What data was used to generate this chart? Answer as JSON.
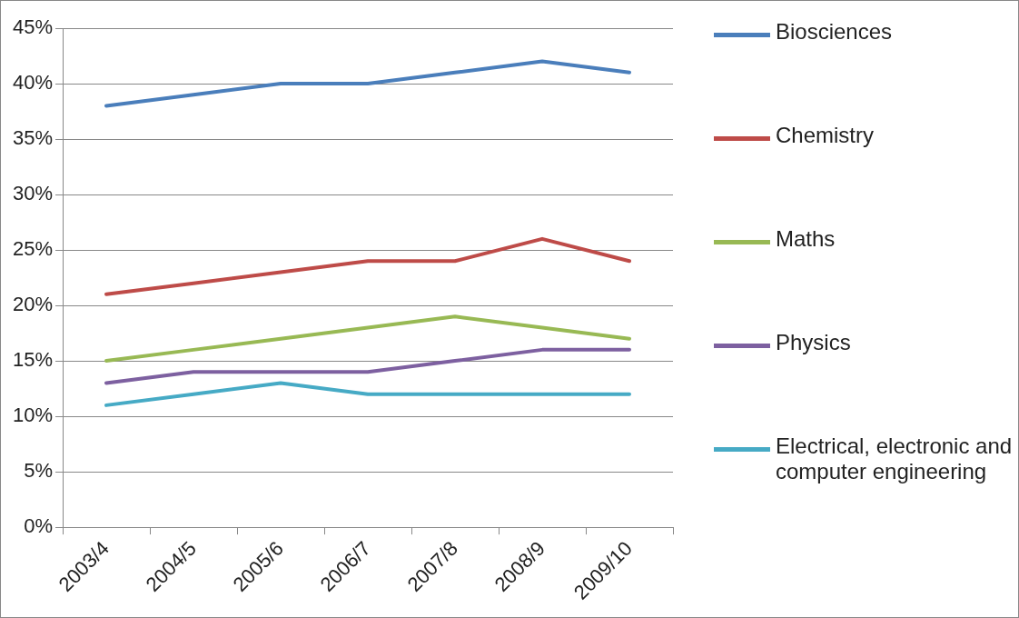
{
  "chart_data": {
    "type": "line",
    "categories": [
      "2003/4",
      "2004/5",
      "2005/6",
      "2006/7",
      "2007/8",
      "2008/9",
      "2009/10"
    ],
    "series": [
      {
        "name": "Biosciences",
        "color": "#4a7ebb",
        "values": [
          38,
          39,
          40,
          40,
          41,
          42,
          41
        ]
      },
      {
        "name": "Chemistry",
        "color": "#be4b48",
        "values": [
          21,
          22,
          23,
          24,
          24,
          26,
          24
        ]
      },
      {
        "name": "Maths",
        "color": "#98b954",
        "values": [
          15,
          16,
          17,
          18,
          19,
          18,
          17
        ]
      },
      {
        "name": "Physics",
        "color": "#7d60a0",
        "values": [
          13,
          14,
          14,
          14,
          15,
          16,
          16
        ]
      },
      {
        "name": "Electrical, electronic and computer engineering",
        "color": "#46aac5",
        "values": [
          11,
          12,
          13,
          12,
          12,
          12,
          12
        ]
      }
    ],
    "ylim": [
      0,
      45
    ],
    "yticks": [
      {
        "value": 0,
        "label": "0%"
      },
      {
        "value": 5,
        "label": "5%"
      },
      {
        "value": 10,
        "label": "10%"
      },
      {
        "value": 15,
        "label": "15%"
      },
      {
        "value": 20,
        "label": "20%"
      },
      {
        "value": 25,
        "label": "25%"
      },
      {
        "value": 30,
        "label": "30%"
      },
      {
        "value": 35,
        "label": "35%"
      },
      {
        "value": 40,
        "label": "40%"
      },
      {
        "value": 45,
        "label": "45%"
      }
    ],
    "grid": "y",
    "legend": "right",
    "marker": "none",
    "line_style": "solid"
  }
}
